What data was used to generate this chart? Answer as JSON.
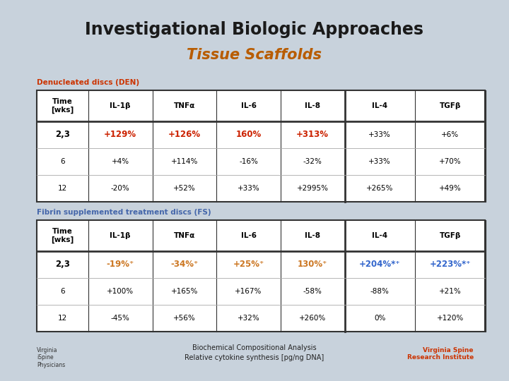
{
  "title1": "Investigational Biologic Approaches",
  "title2": "Tissue Scaffolds",
  "title1_color": "#1a1a1a",
  "title2_color": "#b85c00",
  "bg_color": "#c5ced e",
  "table_bg": "#ffffff",
  "section1_label": "Denucleated discs (DEN)",
  "section2_label": "Fibrin supplemented treatment discs (FS)",
  "section1_color": "#cc3300",
  "section2_color": "#4466aa",
  "col_headers": [
    "Time\n[wks]",
    "IL-1β",
    "TNFα",
    "IL-6",
    "IL-8",
    "IL-4",
    "TGFβ"
  ],
  "den_rows": [
    [
      "2,3",
      "+129%",
      "+126%",
      "160%",
      "+313%",
      "+33%",
      "+6%"
    ],
    [
      "6",
      "+4%",
      "+114%",
      "-16%",
      "-32%",
      "+33%",
      "+70%"
    ],
    [
      "12",
      "-20%",
      "+52%",
      "+33%",
      "+2995%",
      "+265%",
      "+49%"
    ]
  ],
  "den_colors": [
    [
      "#000000",
      "#cc2200",
      "#cc2200",
      "#cc2200",
      "#cc2200",
      "#000000",
      "#000000"
    ],
    [
      "#000000",
      "#000000",
      "#000000",
      "#000000",
      "#000000",
      "#000000",
      "#000000"
    ],
    [
      "#000000",
      "#000000",
      "#000000",
      "#000000",
      "#000000",
      "#000000",
      "#000000"
    ]
  ],
  "den_bold": [
    [
      true,
      true,
      true,
      true,
      true,
      false,
      false
    ],
    [
      false,
      false,
      false,
      false,
      false,
      false,
      false
    ],
    [
      false,
      false,
      false,
      false,
      false,
      false,
      false
    ]
  ],
  "fs_rows": [
    [
      "2,3",
      "-19%⁺",
      "-34%⁺",
      "+25%⁺",
      "130%⁺",
      "+204%*⁺",
      "+223%*⁺"
    ],
    [
      "6",
      "+100%",
      "+165%",
      "+167%",
      "-58%",
      "-88%",
      "+21%"
    ],
    [
      "12",
      "-45%",
      "+56%",
      "+32%",
      "+260%",
      "0%",
      "+120%"
    ]
  ],
  "fs_colors": [
    [
      "#000000",
      "#cc7722",
      "#cc7722",
      "#cc7722",
      "#cc7722",
      "#3366cc",
      "#3366cc"
    ],
    [
      "#000000",
      "#000000",
      "#000000",
      "#000000",
      "#000000",
      "#000000",
      "#000000"
    ],
    [
      "#000000",
      "#000000",
      "#000000",
      "#000000",
      "#000000",
      "#000000",
      "#000000"
    ]
  ],
  "fs_bold": [
    [
      true,
      true,
      true,
      true,
      true,
      true,
      true
    ],
    [
      false,
      false,
      false,
      false,
      false,
      false,
      false
    ],
    [
      false,
      false,
      false,
      false,
      false,
      false,
      false
    ]
  ],
  "footer_text1": "Biochemical Compositional Analysis",
  "footer_text2": "Relative cytokine synthesis [pg/ng DNA]",
  "bg_color_hex": "#c8d2dc"
}
